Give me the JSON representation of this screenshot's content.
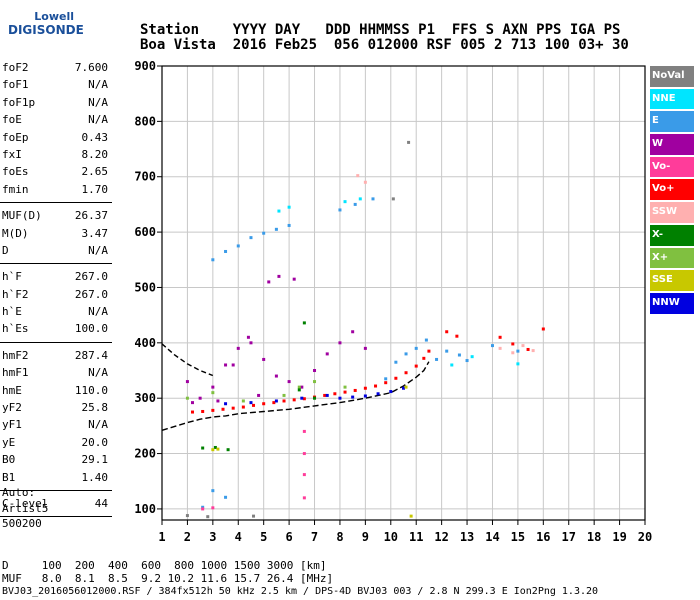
{
  "logo": {
    "top": "Lowell",
    "main": "DIGISONDE"
  },
  "header": {
    "line1": "Station    YYYY DAY   DDD HHMMSS P1  FFS S AXN PPS IGA PS",
    "line2": "Boa Vista  2016 Feb25  056 012000 RSF 005 2 713 100 03+ 30"
  },
  "params_group1": [
    {
      "k": "foF2",
      "v": "7.600"
    },
    {
      "k": "foF1",
      "v": "N/A"
    },
    {
      "k": "foF1p",
      "v": "N/A"
    },
    {
      "k": "foE",
      "v": "N/A"
    },
    {
      "k": "foEp",
      "v": "0.43"
    },
    {
      "k": "fxI",
      "v": "8.20"
    },
    {
      "k": "foEs",
      "v": "2.65"
    },
    {
      "k": "fmin",
      "v": "1.70"
    }
  ],
  "params_group2": [
    {
      "k": "MUF(D)",
      "v": "26.37"
    },
    {
      "k": "M(D)",
      "v": "3.47"
    },
    {
      "k": "D",
      "v": "N/A"
    }
  ],
  "params_group3": [
    {
      "k": "h`F",
      "v": "267.0"
    },
    {
      "k": "h`F2",
      "v": "267.0"
    },
    {
      "k": "h`E",
      "v": "N/A"
    },
    {
      "k": "h`Es",
      "v": "100.0"
    }
  ],
  "params_group4": [
    {
      "k": "hmF2",
      "v": "287.4"
    },
    {
      "k": "hmF1",
      "v": "N/A"
    },
    {
      "k": "hmE",
      "v": "110.0"
    },
    {
      "k": "yF2",
      "v": "25.8"
    },
    {
      "k": "yF1",
      "v": "N/A"
    },
    {
      "k": "yE",
      "v": "20.0"
    },
    {
      "k": "B0",
      "v": "29.1"
    },
    {
      "k": "B1",
      "v": "1.40"
    }
  ],
  "params_group5": [
    {
      "k": "C-level",
      "v": "44"
    }
  ],
  "auto": {
    "line1": "Auto:",
    "line2": "Artist5",
    "line3": "500200"
  },
  "legend": [
    {
      "label": "NoVal",
      "color": "#808080"
    },
    {
      "label": "NNE",
      "color": "#00e5ff"
    },
    {
      "label": "E",
      "color": "#3a9be8"
    },
    {
      "label": "W",
      "color": "#a000a0"
    },
    {
      "label": "Vo-",
      "color": "#ff3c9a"
    },
    {
      "label": "Vo+",
      "color": "#ff0000"
    },
    {
      "label": "SSW",
      "color": "#ffb0b0"
    },
    {
      "label": "X-",
      "color": "#008000"
    },
    {
      "label": "X+",
      "color": "#80c040"
    },
    {
      "label": "SSE",
      "color": "#c8c800"
    },
    {
      "label": "NNW",
      "color": "#0000e0"
    }
  ],
  "bottom": {
    "line1": "D     100  200  400  600  800 1000 1500 3000 [km]",
    "line2": "MUF   8.0  8.1  8.5  9.2 10.2 11.6 15.7 26.4 [MHz]",
    "line3": "BVJ03_2016056012000.RSF / 384fx512h 50 kHz 2.5 km / DPS-4D BVJ03 003 / 2.8 N 299.3 E Ion2Png 1.3.20"
  },
  "chart_data": {
    "type": "scatter",
    "xlim": [
      1,
      20
    ],
    "ylim": [
      80,
      900
    ],
    "x_ticks": [
      1,
      2,
      3,
      4,
      5,
      6,
      7,
      8,
      9,
      10,
      11,
      12,
      13,
      14,
      15,
      16,
      17,
      18,
      19,
      20
    ],
    "y_ticks": [
      100,
      200,
      300,
      400,
      500,
      600,
      700,
      800,
      900
    ],
    "y_tick_labels": [
      "100",
      "200",
      "300",
      "400",
      "500",
      "600",
      "700",
      "800",
      "900"
    ],
    "grid": true,
    "series": [
      {
        "color": "#ff0000",
        "points": [
          [
            2.2,
            275
          ],
          [
            2.6,
            276
          ],
          [
            3.0,
            278
          ],
          [
            3.4,
            280
          ],
          [
            3.8,
            282
          ],
          [
            4.2,
            284
          ],
          [
            4.6,
            287
          ],
          [
            5.0,
            290
          ],
          [
            5.4,
            292
          ],
          [
            5.8,
            295
          ],
          [
            6.2,
            297
          ],
          [
            6.6,
            299
          ],
          [
            7.0,
            302
          ],
          [
            7.4,
            305
          ],
          [
            7.8,
            308
          ],
          [
            8.2,
            311
          ],
          [
            8.6,
            314
          ],
          [
            9.0,
            318
          ],
          [
            9.4,
            322
          ],
          [
            9.8,
            328
          ],
          [
            10.2,
            336
          ],
          [
            10.6,
            346
          ],
          [
            11.0,
            358
          ],
          [
            11.3,
            372
          ],
          [
            11.5,
            385
          ],
          [
            12.2,
            420
          ],
          [
            12.6,
            412
          ],
          [
            14.3,
            410
          ],
          [
            14.8,
            398
          ],
          [
            15.4,
            388
          ],
          [
            16.0,
            425
          ]
        ]
      },
      {
        "color": "#a000a0",
        "points": [
          [
            2.0,
            330
          ],
          [
            2.5,
            300
          ],
          [
            3.0,
            320
          ],
          [
            3.5,
            360
          ],
          [
            4.0,
            390
          ],
          [
            4.5,
            400
          ],
          [
            5.0,
            370
          ],
          [
            5.5,
            340
          ],
          [
            6.0,
            330
          ],
          [
            6.5,
            320
          ],
          [
            7.0,
            350
          ],
          [
            7.5,
            380
          ],
          [
            8.0,
            400
          ],
          [
            8.5,
            420
          ],
          [
            9.0,
            390
          ],
          [
            2.2,
            292
          ],
          [
            3.2,
            295
          ],
          [
            4.8,
            305
          ],
          [
            5.2,
            510
          ],
          [
            5.6,
            520
          ],
          [
            6.2,
            515
          ],
          [
            3.8,
            360
          ],
          [
            4.4,
            410
          ]
        ]
      },
      {
        "color": "#3a9be8",
        "points": [
          [
            3.0,
            550
          ],
          [
            3.5,
            565
          ],
          [
            4.0,
            575
          ],
          [
            4.5,
            590
          ],
          [
            5.0,
            598
          ],
          [
            5.5,
            605
          ],
          [
            6.0,
            612
          ],
          [
            8.0,
            640
          ],
          [
            8.6,
            650
          ],
          [
            9.3,
            660
          ],
          [
            9.8,
            335
          ],
          [
            10.2,
            365
          ],
          [
            10.6,
            380
          ],
          [
            11.0,
            390
          ],
          [
            11.4,
            405
          ],
          [
            11.8,
            370
          ],
          [
            12.2,
            385
          ],
          [
            12.7,
            378
          ],
          [
            13.0,
            368
          ],
          [
            14.0,
            395
          ],
          [
            15.0,
            385
          ],
          [
            3.0,
            133
          ],
          [
            3.5,
            121
          ],
          [
            2.6,
            103
          ]
        ]
      },
      {
        "color": "#00e5ff",
        "points": [
          [
            5.6,
            638
          ],
          [
            6.0,
            645
          ],
          [
            8.2,
            655
          ],
          [
            8.8,
            660
          ],
          [
            12.4,
            360
          ],
          [
            13.2,
            375
          ],
          [
            15.0,
            362
          ]
        ]
      },
      {
        "color": "#0000e0",
        "points": [
          [
            3.5,
            290
          ],
          [
            4.5,
            292
          ],
          [
            5.5,
            295
          ],
          [
            6.5,
            300
          ],
          [
            7.5,
            305
          ],
          [
            8.0,
            300
          ],
          [
            8.5,
            302
          ],
          [
            9.0,
            304
          ],
          [
            9.5,
            308
          ],
          [
            10.0,
            312
          ],
          [
            10.5,
            318
          ]
        ]
      },
      {
        "color": "#ffb0b0",
        "points": [
          [
            14.3,
            390
          ],
          [
            14.8,
            382
          ],
          [
            15.2,
            395
          ],
          [
            15.6,
            386
          ],
          [
            9.0,
            690
          ],
          [
            8.7,
            702
          ]
        ]
      },
      {
        "color": "#80c040",
        "points": [
          [
            2.0,
            300
          ],
          [
            3.0,
            310
          ],
          [
            4.2,
            295
          ],
          [
            5.8,
            305
          ],
          [
            6.4,
            320
          ],
          [
            7.0,
            330
          ],
          [
            8.2,
            320
          ]
        ]
      },
      {
        "color": "#008000",
        "points": [
          [
            2.6,
            210
          ],
          [
            3.1,
            211
          ],
          [
            3.6,
            207
          ],
          [
            6.4,
            315
          ],
          [
            6.6,
            436
          ],
          [
            7.0,
            300
          ]
        ]
      },
      {
        "color": "#c8c800",
        "points": [
          [
            3.0,
            207
          ],
          [
            3.2,
            208
          ],
          [
            10.6,
            320
          ],
          [
            10.8,
            87
          ]
        ]
      },
      {
        "color": "#808080",
        "points": [
          [
            2.8,
            86
          ],
          [
            4.6,
            87
          ],
          [
            2.0,
            88
          ],
          [
            10.1,
            660
          ],
          [
            10.7,
            762
          ]
        ]
      },
      {
        "color": "#ff3c9a",
        "points": [
          [
            2.6,
            100
          ],
          [
            3.0,
            102
          ],
          [
            6.6,
            240
          ],
          [
            6.6,
            200
          ],
          [
            6.6,
            162
          ],
          [
            6.6,
            120
          ]
        ]
      }
    ],
    "trace_upper": [
      [
        1,
        398
      ],
      [
        1.5,
        378
      ],
      [
        2.0,
        362
      ],
      [
        2.5,
        350
      ],
      [
        3.0,
        341
      ]
    ],
    "trace_lower": [
      [
        1,
        242
      ],
      [
        1.5,
        249
      ],
      [
        2.0,
        256
      ],
      [
        2.5,
        262
      ],
      [
        3.0,
        266
      ],
      [
        3.5,
        268
      ],
      [
        4.0,
        272
      ],
      [
        5.0,
        276
      ],
      [
        6.0,
        280
      ],
      [
        7.0,
        286
      ],
      [
        8.0,
        292
      ],
      [
        9.0,
        300
      ],
      [
        10.0,
        310
      ],
      [
        10.5,
        322
      ],
      [
        11.0,
        338
      ],
      [
        11.3,
        350
      ],
      [
        11.5,
        366
      ]
    ]
  }
}
